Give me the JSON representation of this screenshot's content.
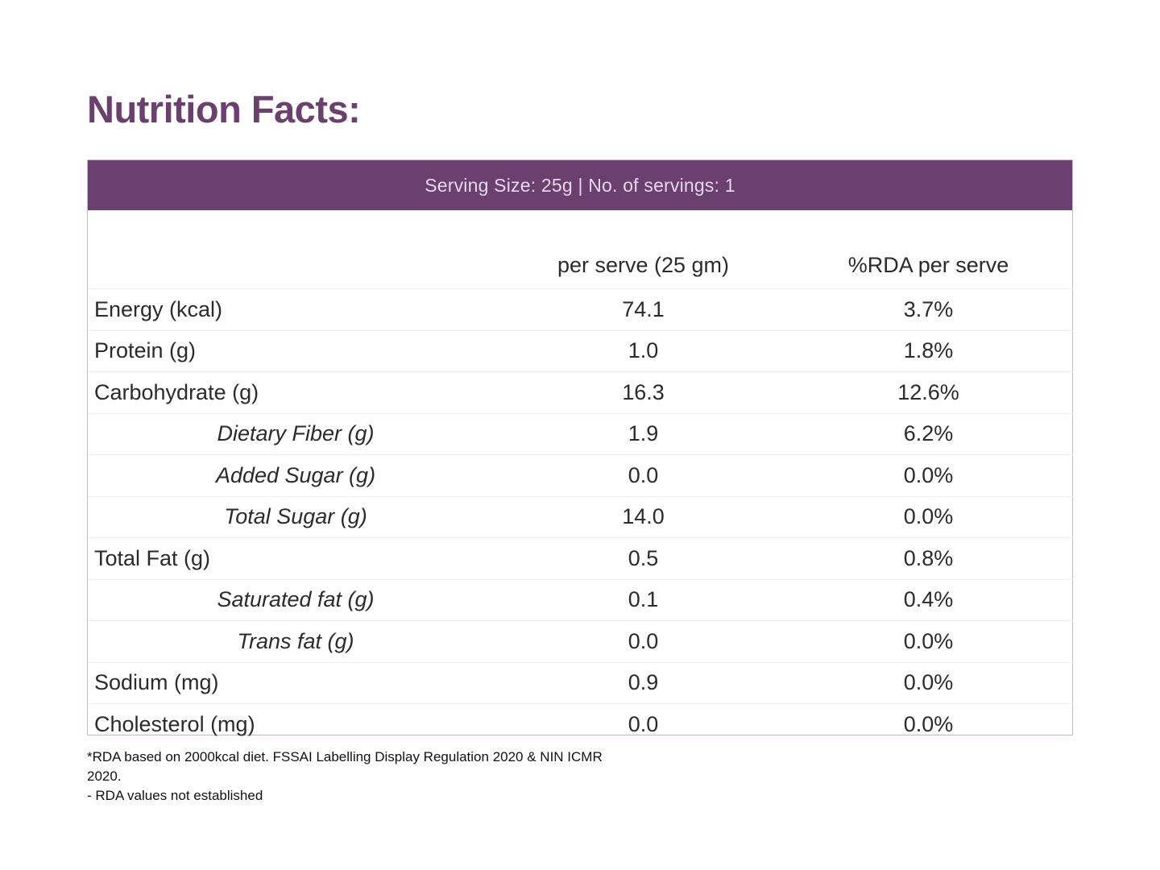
{
  "title": "Nutrition Facts:",
  "serving_line": "Serving Size: 25g | No. of servings: 1",
  "columns": {
    "nutrient": "",
    "per_serve": "per serve (25 gm)",
    "rda": "%RDA per serve"
  },
  "rows": [
    {
      "name": "Energy (kcal)",
      "per_serve": "74.1",
      "rda": "3.7%",
      "sub": false
    },
    {
      "name": "Protein (g)",
      "per_serve": "1.0",
      "rda": "1.8%",
      "sub": false
    },
    {
      "name": "Carbohydrate (g)",
      "per_serve": "16.3",
      "rda": "12.6%",
      "sub": false
    },
    {
      "name": "Dietary Fiber (g)",
      "per_serve": "1.9",
      "rda": "6.2%",
      "sub": true
    },
    {
      "name": "Added Sugar (g)",
      "per_serve": "0.0",
      "rda": "0.0%",
      "sub": true
    },
    {
      "name": "Total Sugar (g)",
      "per_serve": "14.0",
      "rda": "0.0%",
      "sub": true
    },
    {
      "name": "Total Fat (g)",
      "per_serve": "0.5",
      "rda": "0.8%",
      "sub": false
    },
    {
      "name": "Saturated fat (g)",
      "per_serve": "0.1",
      "rda": "0.4%",
      "sub": true
    },
    {
      "name": "Trans fat (g)",
      "per_serve": "0.0",
      "rda": "0.0%",
      "sub": true
    },
    {
      "name": "Sodium (mg)",
      "per_serve": "0.9",
      "rda": "0.0%",
      "sub": false
    },
    {
      "name": "Cholesterol (mg)",
      "per_serve": "0.0",
      "rda": "0.0%",
      "sub": false
    }
  ],
  "footnotes": [
    "*RDA based on 2000kcal diet. FSSAI Labelling Display Regulation 2020 & NIN ICMR 2020.",
    "- RDA values not established"
  ],
  "colors": {
    "accent": "#6b3f6e",
    "serving_text": "#e6d9ec",
    "border": "#c9b6cf"
  }
}
